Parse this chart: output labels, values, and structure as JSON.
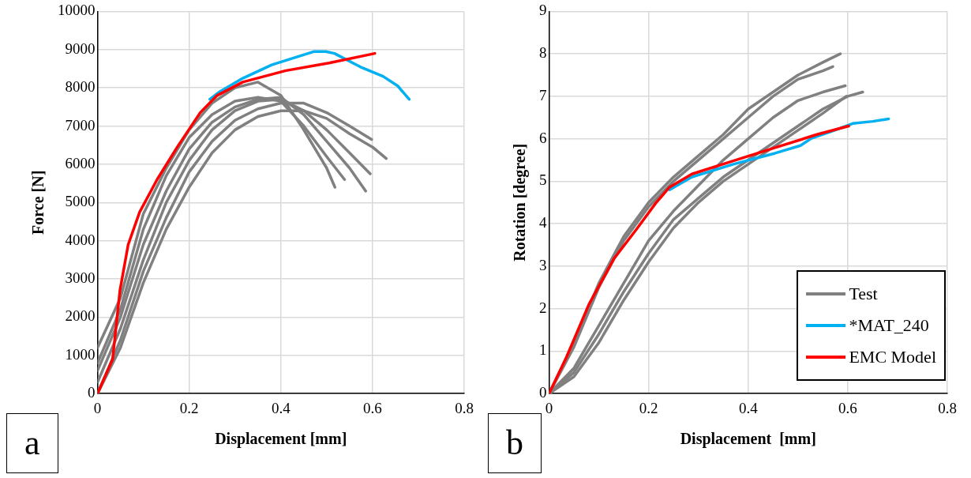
{
  "chart_data": [
    {
      "type": "line",
      "xlabel": "Displacement [mm]",
      "ylabel": "Force [N]",
      "xlim": [
        0,
        0.8
      ],
      "xticks": [
        0,
        0.2,
        0.4,
        0.6,
        0.8
      ],
      "ylim": [
        0,
        10000
      ],
      "yticks": [
        0,
        1000,
        2000,
        3000,
        4000,
        5000,
        6000,
        7000,
        8000,
        9000,
        10000
      ],
      "grid": true,
      "legend": false,
      "annotations": [
        "a"
      ],
      "series": [
        {
          "color": "#808080",
          "x": [
            0,
            0.05,
            0.1,
            0.15,
            0.2,
            0.25,
            0.3,
            0.35,
            0.4,
            0.45,
            0.5,
            0.518
          ],
          "values": [
            1200,
            2500,
            4700,
            5900,
            6900,
            7600,
            8000,
            8150,
            7800,
            6900,
            5900,
            5400
          ]
        },
        {
          "color": "#808080",
          "x": [
            0,
            0.05,
            0.1,
            0.15,
            0.2,
            0.25,
            0.3,
            0.35,
            0.4,
            0.45,
            0.5,
            0.539
          ],
          "values": [
            800,
            2200,
            4300,
            5700,
            6700,
            7300,
            7650,
            7750,
            7650,
            7000,
            6200,
            5600
          ]
        },
        {
          "color": "#808080",
          "x": [
            0,
            0.05,
            0.1,
            0.15,
            0.2,
            0.25,
            0.3,
            0.35,
            0.4,
            0.45,
            0.5,
            0.55,
            0.585
          ],
          "values": [
            600,
            2000,
            3900,
            5300,
            6400,
            7100,
            7500,
            7700,
            7750,
            7300,
            6600,
            5900,
            5300
          ]
        },
        {
          "color": "#808080",
          "x": [
            0,
            0.05,
            0.1,
            0.15,
            0.2,
            0.25,
            0.3,
            0.35,
            0.4,
            0.45,
            0.5,
            0.55,
            0.595
          ],
          "values": [
            300,
            1700,
            3500,
            5000,
            6100,
            6900,
            7400,
            7650,
            7700,
            7400,
            6900,
            6300,
            5750
          ]
        },
        {
          "color": "#808080",
          "x": [
            0,
            0.05,
            0.1,
            0.15,
            0.2,
            0.25,
            0.3,
            0.35,
            0.4,
            0.45,
            0.5,
            0.55,
            0.598
          ],
          "values": [
            0,
            1400,
            3200,
            4600,
            5800,
            6600,
            7150,
            7450,
            7600,
            7600,
            7350,
            7000,
            6650
          ]
        },
        {
          "color": "#808080",
          "x": [
            0,
            0.05,
            0.1,
            0.15,
            0.2,
            0.25,
            0.3,
            0.35,
            0.4,
            0.45,
            0.5,
            0.55,
            0.6,
            0.63
          ],
          "values": [
            0,
            1200,
            2900,
            4300,
            5400,
            6300,
            6900,
            7250,
            7400,
            7400,
            7200,
            6800,
            6450,
            6150
          ]
        },
        {
          "color": "#00b0f0",
          "x": [
            0.245,
            0.267,
            0.317,
            0.38,
            0.473,
            0.498,
            0.517,
            0.573,
            0.623,
            0.655,
            0.68
          ],
          "values": [
            7700,
            7900,
            8250,
            8600,
            8950,
            8950,
            8900,
            8550,
            8300,
            8050,
            7700
          ]
        },
        {
          "color": "#ff0000",
          "x": [
            0,
            0.033,
            0.049,
            0.067,
            0.092,
            0.13,
            0.174,
            0.224,
            0.261,
            0.317,
            0.411,
            0.505,
            0.605
          ],
          "values": [
            0,
            900,
            2700,
            3900,
            4750,
            5600,
            6450,
            7350,
            7800,
            8150,
            8450,
            8650,
            8900
          ]
        }
      ]
    },
    {
      "type": "line",
      "xlabel": "Displacement  [mm]",
      "ylabel": "Rotation [degree]",
      "xlim": [
        0,
        0.8
      ],
      "xticks": [
        0,
        0.2,
        0.4,
        0.6,
        0.8
      ],
      "ylim": [
        0,
        9
      ],
      "yticks": [
        0,
        1,
        2,
        3,
        4,
        5,
        6,
        7,
        8,
        9
      ],
      "grid": true,
      "legend": "bottom right",
      "annotations": [
        "b"
      ],
      "series": [
        {
          "name": "Test",
          "color": "#808080",
          "x": [
            0,
            0.05,
            0.1,
            0.15,
            0.2,
            0.25,
            0.3,
            0.35,
            0.4,
            0.45,
            0.5,
            0.55,
            0.585
          ],
          "values": [
            0,
            1.2,
            2.6,
            3.7,
            4.5,
            5.1,
            5.6,
            6.1,
            6.7,
            7.1,
            7.5,
            7.8,
            8.0
          ]
        },
        {
          "color": "#808080",
          "x": [
            0,
            0.05,
            0.1,
            0.15,
            0.2,
            0.25,
            0.3,
            0.35,
            0.4,
            0.45,
            0.5,
            0.55,
            0.57
          ],
          "values": [
            0,
            1.1,
            2.5,
            3.6,
            4.4,
            5.0,
            5.5,
            6.0,
            6.5,
            7.0,
            7.4,
            7.6,
            7.7
          ]
        },
        {
          "color": "#808080",
          "x": [
            0,
            0.05,
            0.1,
            0.15,
            0.2,
            0.25,
            0.3,
            0.35,
            0.4,
            0.45,
            0.5,
            0.55,
            0.595
          ],
          "values": [
            0,
            0.6,
            1.6,
            2.6,
            3.6,
            4.3,
            4.9,
            5.5,
            6.0,
            6.5,
            6.9,
            7.1,
            7.25
          ]
        },
        {
          "color": "#808080",
          "x": [
            0,
            0.05,
            0.1,
            0.15,
            0.2,
            0.25,
            0.3,
            0.35,
            0.4,
            0.45,
            0.5,
            0.55,
            0.6,
            0.63
          ],
          "values": [
            0,
            0.5,
            1.4,
            2.4,
            3.3,
            4.1,
            4.6,
            5.1,
            5.5,
            5.9,
            6.3,
            6.7,
            7.0,
            7.1
          ]
        },
        {
          "color": "#808080",
          "x": [
            0,
            0.05,
            0.1,
            0.15,
            0.2,
            0.25,
            0.3,
            0.35,
            0.4,
            0.45,
            0.5,
            0.55,
            0.597
          ],
          "values": [
            0,
            0.4,
            1.2,
            2.2,
            3.1,
            3.9,
            4.5,
            5.0,
            5.4,
            5.8,
            6.2,
            6.6,
            7.0
          ]
        },
        {
          "name": "*MAT_240",
          "color": "#00b0f0",
          "x": [
            0.242,
            0.287,
            0.37,
            0.454,
            0.505,
            0.527,
            0.566,
            0.61,
            0.65,
            0.682
          ],
          "values": [
            4.8,
            5.1,
            5.4,
            5.66,
            5.84,
            6.01,
            6.17,
            6.36,
            6.41,
            6.47
          ]
        },
        {
          "name": "EMC Model",
          "color": "#ff0000",
          "x": [
            0,
            0.035,
            0.08,
            0.13,
            0.175,
            0.214,
            0.242,
            0.287,
            0.37,
            0.454,
            0.538,
            0.602
          ],
          "values": [
            0,
            0.86,
            2.1,
            3.17,
            3.86,
            4.48,
            4.86,
            5.17,
            5.48,
            5.79,
            6.1,
            6.3
          ]
        }
      ]
    }
  ]
}
